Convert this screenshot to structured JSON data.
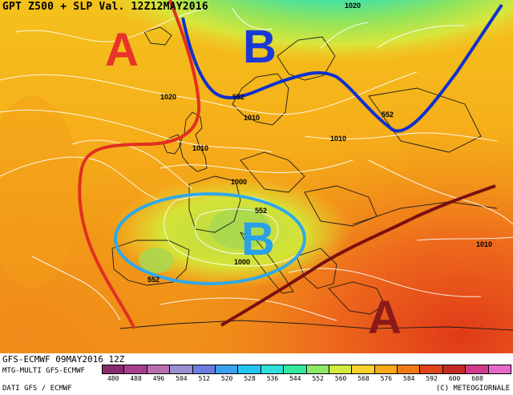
{
  "header": {
    "title": "GPT Z500 + SLP Val. 12Z12MAY2016"
  },
  "map": {
    "labels": {
      "high_nw": "A",
      "low_north": "B",
      "low_iberia": "B",
      "high_se": "A",
      "iso_1020_a": "1020",
      "iso_1020_b": "1020",
      "iso_1010_a": "1010",
      "iso_1010_b": "1010",
      "iso_1010_c": "1010",
      "iso_1010_d": "1010",
      "iso_1000_a": "1000",
      "iso_1000_b": "1000",
      "z552_a": "552",
      "z552_b": "552",
      "z552_c": "552",
      "z552_d": "552"
    },
    "colors": {
      "high_mark": "#e8332a",
      "low_mark": "#1a3ad6",
      "low_iberia_mark": "#2aa0e6",
      "high_se_mark": "#8b1a1a",
      "ridge_line": "#e03020",
      "trough_line": "#1030d0",
      "ring": "#30a8e8",
      "se_ridge_line": "#7a1010"
    }
  },
  "footer": {
    "model": "GFS-ECMWF  09MAY2016 12Z",
    "sub": "MTG-MULTI GFS-ECMWF",
    "credit_left": "DATI GFS / ECMWF",
    "credit_right": "(C) METEOGIORNALE",
    "scale": [
      {
        "label": "480",
        "color": "#8c2a6e"
      },
      {
        "label": "488",
        "color": "#a63f8c"
      },
      {
        "label": "496",
        "color": "#b86fb0"
      },
      {
        "label": "504",
        "color": "#9a8fd0"
      },
      {
        "label": "512",
        "color": "#6c7ce0"
      },
      {
        "label": "520",
        "color": "#3aa0f0"
      },
      {
        "label": "528",
        "color": "#22c6f2"
      },
      {
        "label": "536",
        "color": "#2ee0d8"
      },
      {
        "label": "544",
        "color": "#34e8a0"
      },
      {
        "label": "552",
        "color": "#8ce868"
      },
      {
        "label": "560",
        "color": "#d4ea40"
      },
      {
        "label": "568",
        "color": "#f6d22a"
      },
      {
        "label": "576",
        "color": "#f6aa1a"
      },
      {
        "label": "584",
        "color": "#f07a18"
      },
      {
        "label": "592",
        "color": "#e04418"
      },
      {
        "label": "600",
        "color": "#c42a22"
      },
      {
        "label": "608",
        "color": "#d43a8c"
      },
      {
        "label": "",
        "color": "#e86ac8"
      }
    ]
  }
}
